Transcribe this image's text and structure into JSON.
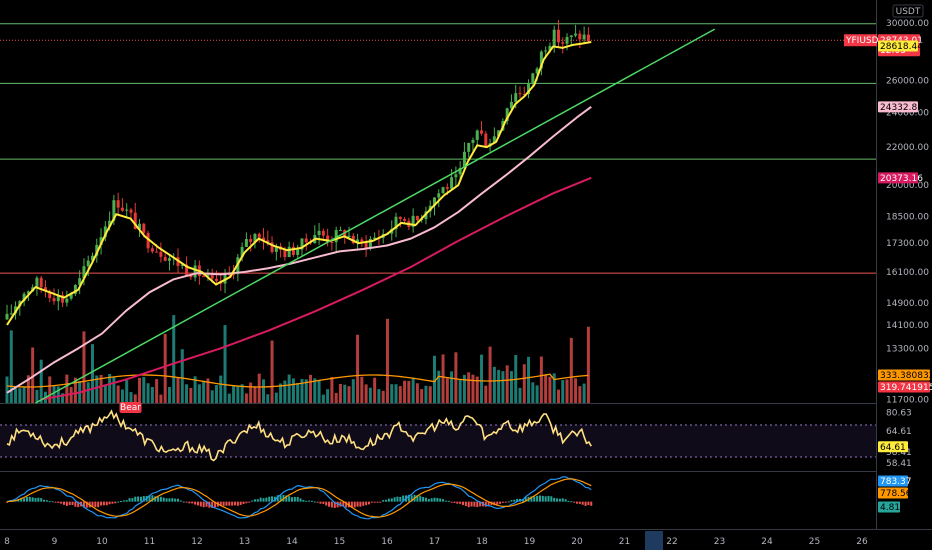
{
  "header": {
    "currency": "USDT"
  },
  "colors": {
    "background": "#000000",
    "up": "#26a69a",
    "down": "#ef5350",
    "candle_up": "#4caf50",
    "candle_down": "#e53935",
    "ema_fast": "#ffeb3b",
    "ma_mid": "#f8bbd0",
    "ma_slow": "#d81b60",
    "trendline": "#4cd964",
    "hline_green": "#66bb6a",
    "hline_red": "#ef5350",
    "rsi": "#ffe082",
    "macd": "#2196f3",
    "signal": "#ff9800",
    "volume_ma": "#ff9800",
    "price_tag": "#f23645"
  },
  "chart_data": [
    {
      "type": "line",
      "name": "price-pane",
      "symbol_tag": "YFIUSDT",
      "scale": "log",
      "ylim": [
        11600,
        31000
      ],
      "xlim": [
        8,
        26
      ],
      "y_ticks": [
        "30000.00",
        "26000.00",
        "24000.00",
        "22000.00",
        "20000.00",
        "18500.00",
        "17300.00",
        "16100.00",
        "14900.00",
        "14100.00",
        "13300.00",
        "12500.00",
        "11700.00"
      ],
      "x_ticks": [
        "8",
        "9",
        "10",
        "11",
        "12",
        "13",
        "14",
        "15",
        "16",
        "17",
        "18",
        "19",
        "20",
        "21",
        "22",
        "23",
        "24",
        "25",
        "26"
      ],
      "last_x": 20.3,
      "price": {
        "value": "28743.01",
        "value_num": 28743.01,
        "countdown": "12:03"
      },
      "price_tag_hidden": "28",
      "labels": [
        {
          "text": "28618.44",
          "value": 28618.44,
          "color": "#ffeb3b",
          "text_color": "#000000"
        },
        {
          "text": "24332.87",
          "value": 24332.87,
          "color": "#f8bbd0",
          "text_color": "#000000"
        },
        {
          "text": "20373.16",
          "value": 20373.16,
          "color": "#d81b60",
          "text_color": "#ffffff"
        }
      ],
      "hlines": [
        {
          "value": 29950,
          "color": "#66bb6a",
          "style": "solid"
        },
        {
          "value": 28743.01,
          "color": "#ef5350",
          "style": "dotted"
        },
        {
          "value": 25800,
          "color": "#66bb6a",
          "style": "solid"
        },
        {
          "value": 21350,
          "color": "#66bb6a",
          "style": "solid"
        },
        {
          "value": 16050,
          "color": "#ef5350",
          "style": "solid"
        }
      ],
      "trendline": {
        "x": [
          8.6,
          22.9
        ],
        "y": [
          11600,
          29550
        ]
      },
      "close_series": {
        "x": [
          8.0,
          8.3,
          8.6,
          8.9,
          9.2,
          9.5,
          9.8,
          10.1,
          10.3,
          10.6,
          10.9,
          11.2,
          11.5,
          11.8,
          12.1,
          12.4,
          12.7,
          13.0,
          13.3,
          13.6,
          13.9,
          14.2,
          14.5,
          14.8,
          15.1,
          15.4,
          15.7,
          16.0,
          16.3,
          16.6,
          16.9,
          17.2,
          17.5,
          17.7,
          17.9,
          18.1,
          18.3,
          18.5,
          18.7,
          18.9,
          19.1,
          19.3,
          19.5,
          19.7,
          19.9,
          20.1,
          20.3
        ],
        "y": [
          14300,
          15200,
          15700,
          15300,
          15000,
          15600,
          16900,
          18300,
          19300,
          18500,
          17500,
          17000,
          16600,
          16200,
          16000,
          15500,
          16000,
          17200,
          17800,
          17100,
          16900,
          17200,
          17800,
          17500,
          17800,
          17200,
          17500,
          17800,
          18500,
          18200,
          19200,
          19900,
          20300,
          22100,
          22900,
          22300,
          22700,
          24300,
          25200,
          25400,
          26300,
          28300,
          29100,
          28600,
          28900,
          29100,
          28743.01
        ]
      },
      "ema_fast": {
        "x": [
          8.0,
          8.3,
          8.6,
          8.9,
          9.2,
          9.5,
          9.8,
          10.1,
          10.3,
          10.6,
          10.9,
          11.2,
          11.5,
          11.8,
          12.1,
          12.4,
          12.7,
          13.0,
          13.3,
          13.6,
          13.9,
          14.2,
          14.5,
          14.8,
          15.1,
          15.4,
          15.7,
          16.0,
          16.3,
          16.6,
          16.9,
          17.2,
          17.5,
          17.7,
          17.9,
          18.1,
          18.3,
          18.5,
          18.7,
          18.9,
          19.1,
          19.3,
          19.5,
          19.7,
          19.9,
          20.1,
          20.3
        ],
        "y": [
          14100,
          14900,
          15500,
          15300,
          15100,
          15400,
          16500,
          17800,
          18600,
          18400,
          17600,
          17100,
          16700,
          16300,
          16100,
          15600,
          15900,
          16900,
          17500,
          17200,
          17000,
          17100,
          17500,
          17400,
          17600,
          17300,
          17400,
          17700,
          18200,
          18100,
          18800,
          19500,
          20000,
          21200,
          22100,
          22000,
          22300,
          23500,
          24500,
          25000,
          25700,
          27400,
          28300,
          28200,
          28400,
          28500,
          28618.44
        ]
      },
      "ma_mid": {
        "x": [
          8.0,
          8.5,
          9.0,
          9.5,
          10.0,
          10.5,
          11.0,
          11.5,
          12.0,
          12.5,
          13.0,
          13.5,
          14.0,
          14.5,
          15.0,
          15.5,
          16.0,
          16.5,
          17.0,
          17.5,
          18.0,
          18.5,
          19.0,
          19.5,
          20.0,
          20.3
        ],
        "y": [
          11900,
          12350,
          12850,
          13300,
          13800,
          14600,
          15300,
          15800,
          16050,
          16000,
          16100,
          16250,
          16450,
          16700,
          16950,
          17050,
          17200,
          17500,
          18000,
          18700,
          19600,
          20500,
          21500,
          22600,
          23700,
          24332.87
        ]
      },
      "ma_slow": {
        "x": [
          8.7,
          9.5,
          10.5,
          11.5,
          12.5,
          13.5,
          14.5,
          15.5,
          16.5,
          17.5,
          18.5,
          19.5,
          20.3
        ],
        "y": [
          11700,
          11900,
          12300,
          12800,
          13300,
          13900,
          14600,
          15400,
          16300,
          17400,
          18500,
          19600,
          20373.16
        ]
      }
    },
    {
      "type": "bar",
      "name": "volume-pane",
      "labels": [
        {
          "text": "333.38083220",
          "color": "#ff9800",
          "text_color": "#000000"
        },
        {
          "text": "319.74191500",
          "color": "#f23645",
          "text_color": "#ffffff"
        }
      ]
    },
    {
      "type": "line",
      "name": "rsi-pane",
      "ylim": [
        52,
        85
      ],
      "y_ticks": [
        "80.63",
        "64.61",
        "58.41",
        "58.41"
      ],
      "current": "64.61",
      "bands": [
        74.5,
        58.5
      ],
      "annotation": "Bear",
      "x": [
        8.0,
        8.3,
        8.6,
        8.9,
        9.2,
        9.5,
        9.8,
        10.1,
        10.3,
        10.6,
        10.9,
        11.2,
        11.5,
        11.8,
        12.1,
        12.4,
        12.7,
        13.0,
        13.3,
        13.6,
        13.9,
        14.2,
        14.5,
        14.8,
        15.1,
        15.4,
        15.7,
        16.0,
        16.3,
        16.6,
        16.9,
        17.2,
        17.5,
        17.7,
        17.9,
        18.1,
        18.3,
        18.5,
        18.7,
        18.9,
        19.1,
        19.3,
        19.5,
        19.7,
        19.9,
        20.1,
        20.3
      ],
      "y": [
        66,
        72,
        70,
        64,
        66,
        70,
        74,
        80,
        78,
        73,
        67,
        63,
        60,
        64,
        62,
        58,
        66,
        72,
        74,
        68,
        65,
        70,
        71,
        66,
        69,
        63,
        66,
        70,
        74,
        67,
        73,
        76,
        72,
        80,
        75,
        68,
        71,
        77,
        72,
        74,
        76,
        79,
        73,
        68,
        69,
        70,
        64.61
      ]
    },
    {
      "type": "bar",
      "name": "macd-pane",
      "ylim": [
        -800,
        900
      ],
      "labels": [
        {
          "text": "783.37",
          "value": 783.37,
          "color": "#2196f3",
          "text_color": "#ffffff"
        },
        {
          "text": "778.56",
          "value": 778.56,
          "color": "#ff9800",
          "text_color": "#000000"
        },
        {
          "text": "4.81",
          "value": 4.81,
          "color": "#26a69a",
          "text_color": "#000000"
        }
      ]
    }
  ]
}
